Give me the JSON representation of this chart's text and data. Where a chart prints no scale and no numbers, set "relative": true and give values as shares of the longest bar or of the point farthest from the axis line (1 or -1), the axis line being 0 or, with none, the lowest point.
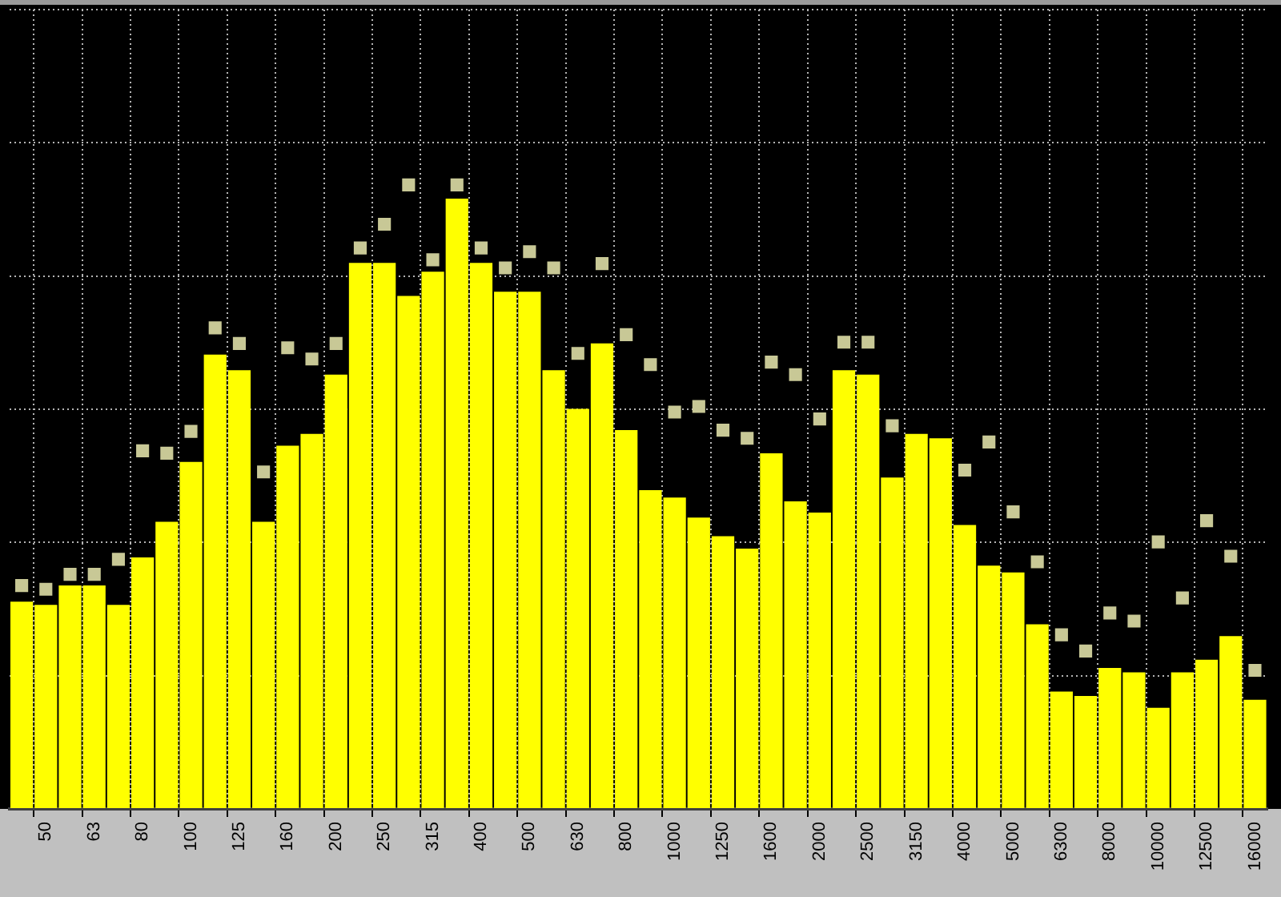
{
  "chart_data": {
    "type": "bar",
    "relative": true,
    "grid": true,
    "marker": "square",
    "categories": [
      null,
      "50",
      null,
      "63",
      null,
      "80",
      null,
      "100",
      null,
      "125",
      null,
      "160",
      null,
      "200",
      null,
      "250",
      null,
      "315",
      null,
      "400",
      null,
      "500",
      null,
      "630",
      null,
      "800",
      null,
      "1000",
      null,
      "1250",
      null,
      "1600",
      null,
      "2000",
      null,
      "2500",
      null,
      "3150",
      null,
      "4000",
      null,
      "5000",
      null,
      "6300",
      null,
      "8000",
      null,
      "10000",
      null,
      "12500",
      null,
      "16000"
    ],
    "series": [
      {
        "color": "#ffff00",
        "values": [
          0.332,
          0.327,
          0.358,
          0.358,
          0.327,
          0.403,
          0.46,
          0.556,
          0.728,
          0.703,
          0.46,
          0.582,
          0.601,
          0.696,
          0.875,
          0.875,
          0.822,
          0.861,
          0.978,
          0.875,
          0.829,
          0.829,
          0.703,
          0.641,
          0.746,
          0.607,
          0.511,
          0.499,
          0.467,
          0.437,
          0.417,
          0.57,
          0.493,
          0.475,
          0.703,
          0.696,
          0.531,
          0.601,
          0.594,
          0.455,
          0.39,
          0.379,
          0.296,
          0.188,
          0.181,
          0.226,
          0.219,
          0.162,
          0.219,
          0.239,
          0.277,
          0.175
        ]
      },
      {
        "type": "scatter",
        "color": "#c8c896",
        "values": [
          0.358,
          0.352,
          0.376,
          0.376,
          0.4,
          0.574,
          0.57,
          0.605,
          0.771,
          0.746,
          0.54,
          0.739,
          0.721,
          0.746,
          0.899,
          0.937,
          1,
          0.88,
          1,
          0.899,
          0.867,
          0.893,
          0.867,
          0.73,
          0.874,
          0.76,
          0.712,
          0.636,
          0.645,
          0.607,
          0.594,
          0.716,
          0.696,
          0.625,
          0.748,
          0.748,
          0.614,
          null,
          null,
          0.543,
          0.588,
          0.476,
          0.396,
          0.279,
          0.253,
          0.314,
          0.301,
          0.428,
          0.338,
          0.462,
          0.405,
          0.222
        ]
      }
    ]
  }
}
